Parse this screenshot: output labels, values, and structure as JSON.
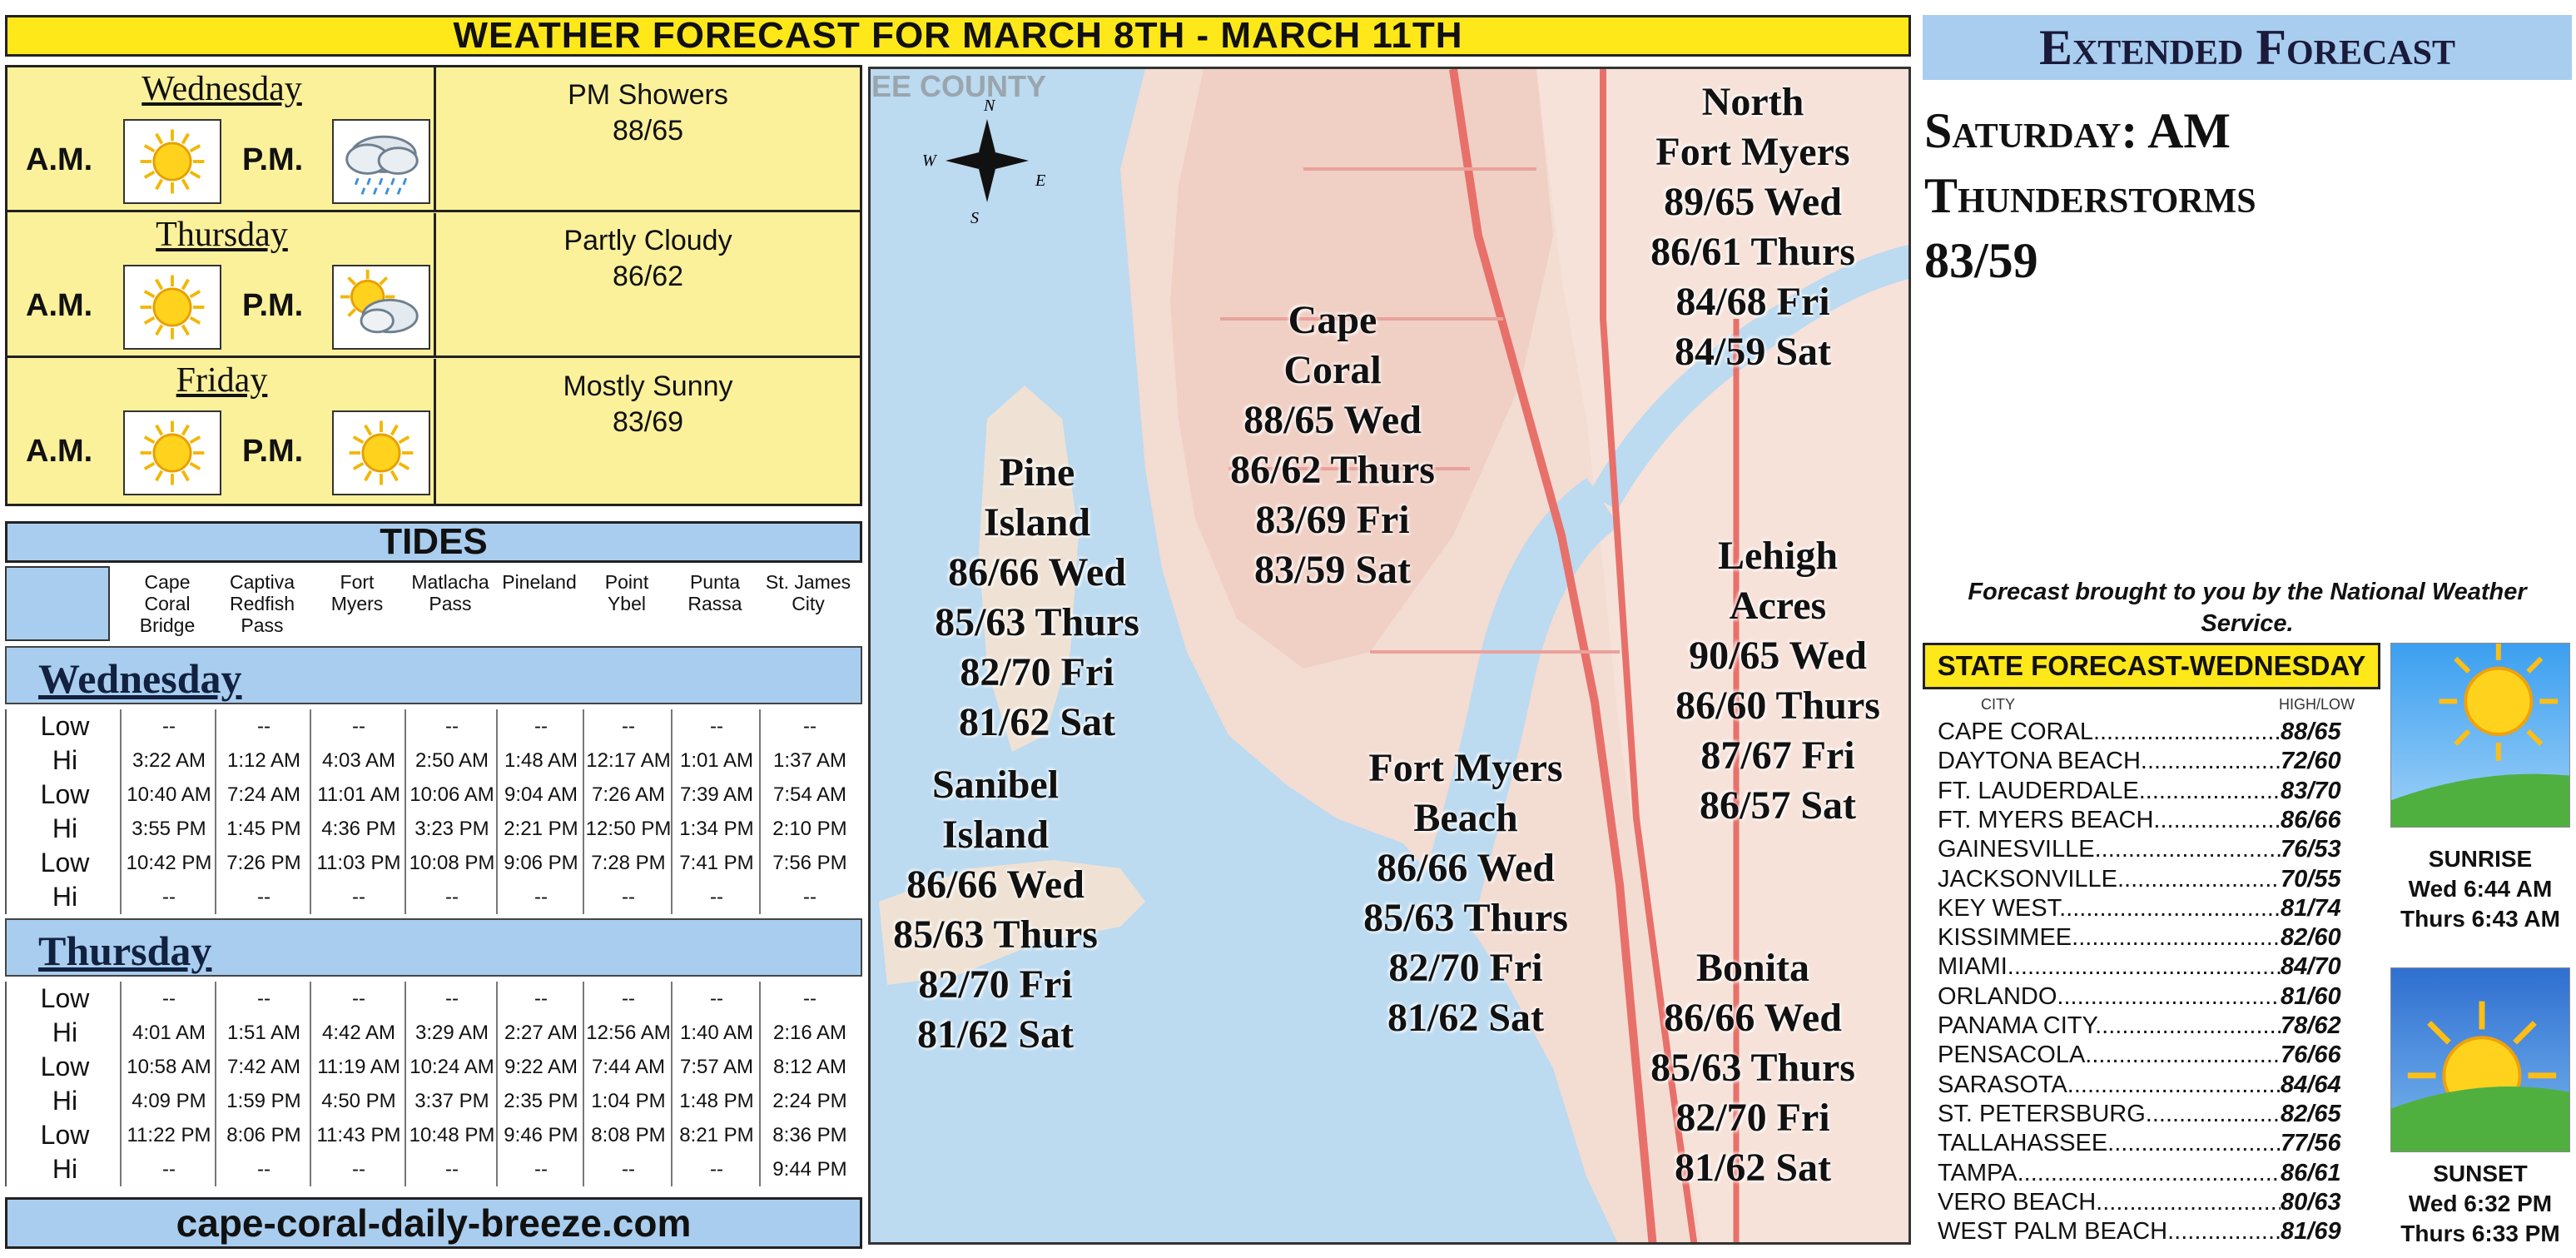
{
  "header": {
    "title": "WEATHER FORECAST FOR MARCH 8TH - MARCH 11TH"
  },
  "daily": [
    {
      "day": "Wednesday",
      "am": "A.M.",
      "pm": "P.M.",
      "am_icon": "sun-icon",
      "pm_icon": "rain-cloud-icon",
      "condition": "PM Showers",
      "temps": "88/65"
    },
    {
      "day": "Thursday",
      "am": "A.M.",
      "pm": "P.M.",
      "am_icon": "sun-icon",
      "pm_icon": "partly-cloudy-icon",
      "condition": "Partly Cloudy",
      "temps": "86/62"
    },
    {
      "day": "Friday",
      "am": "A.M.",
      "pm": "P.M.",
      "am_icon": "sun-icon",
      "pm_icon": "sun-icon",
      "condition": "Mostly Sunny",
      "temps": "83/69"
    }
  ],
  "tides": {
    "title": "TIDES",
    "locations": [
      "Cape\nCoral\nBridge",
      "Captiva\nRedfish\nPass",
      "Fort\nMyers",
      "Matlacha\nPass",
      "Pineland",
      "Point\nYbel",
      "Punta\nRassa",
      "St. James\nCity"
    ],
    "days": [
      {
        "name": "Wednesday",
        "rows": [
          {
            "label": "Low",
            "values": [
              "--",
              "--",
              "--",
              "--",
              "--",
              "--",
              "--",
              "--"
            ]
          },
          {
            "label": "Hi",
            "values": [
              "3:22 AM",
              "1:12 AM",
              "4:03 AM",
              "2:50 AM",
              "1:48 AM",
              "12:17 AM",
              "1:01 AM",
              "1:37 AM"
            ]
          },
          {
            "label": "Low",
            "values": [
              "10:40 AM",
              "7:24 AM",
              "11:01 AM",
              "10:06 AM",
              "9:04 AM",
              "7:26 AM",
              "7:39 AM",
              "7:54 AM"
            ]
          },
          {
            "label": "Hi",
            "values": [
              "3:55 PM",
              "1:45 PM",
              "4:36 PM",
              "3:23 PM",
              "2:21 PM",
              "12:50 PM",
              "1:34 PM",
              "2:10 PM"
            ]
          },
          {
            "label": "Low",
            "values": [
              "10:42 PM",
              "7:26 PM",
              "11:03 PM",
              "10:08 PM",
              "9:06 PM",
              "7:28 PM",
              "7:41 PM",
              "7:56 PM"
            ]
          },
          {
            "label": "Hi",
            "values": [
              "--",
              "--",
              "--",
              "--",
              "--",
              "--",
              "--",
              "--"
            ]
          }
        ]
      },
      {
        "name": "Thursday",
        "rows": [
          {
            "label": "Low",
            "values": [
              "--",
              "--",
              "--",
              "--",
              "--",
              "--",
              "--",
              "--"
            ]
          },
          {
            "label": "Hi",
            "values": [
              "4:01 AM",
              "1:51 AM",
              "4:42 AM",
              "3:29 AM",
              "2:27 AM",
              "12:56 AM",
              "1:40 AM",
              "2:16 AM"
            ]
          },
          {
            "label": "Low",
            "values": [
              "10:58 AM",
              "7:42 AM",
              "11:19 AM",
              "10:24 AM",
              "9:22 AM",
              "7:44 AM",
              "7:57 AM",
              "8:12 AM"
            ]
          },
          {
            "label": "Hi",
            "values": [
              "4:09 PM",
              "1:59 PM",
              "4:50 PM",
              "3:37 PM",
              "2:35 PM",
              "1:04 PM",
              "1:48 PM",
              "2:24 PM"
            ]
          },
          {
            "label": "Low",
            "values": [
              "11:22 PM",
              "8:06 PM",
              "11:43 PM",
              "10:48 PM",
              "9:46 PM",
              "8:08 PM",
              "8:21 PM",
              "8:36 PM"
            ]
          },
          {
            "label": "Hi",
            "values": [
              "--",
              "--",
              "--",
              "--",
              "--",
              "--",
              "--",
              "9:44 PM"
            ]
          }
        ]
      }
    ]
  },
  "footer": {
    "site": "cape-coral-daily-breeze.com"
  },
  "map": {
    "county_text": "EE COUNTY",
    "regions": [
      {
        "name": "North\nFort Myers",
        "forecast": [
          "89/65 Wed",
          "86/61 Thurs",
          "84/68 Fri",
          "84/59 Sat"
        ]
      },
      {
        "name": "Cape\nCoral",
        "forecast": [
          "88/65 Wed",
          "86/62 Thurs",
          "83/69 Fri",
          "83/59 Sat"
        ]
      },
      {
        "name": "Pine\nIsland",
        "forecast": [
          "86/66 Wed",
          "85/63 Thurs",
          "82/70 Fri",
          "81/62 Sat"
        ]
      },
      {
        "name": "Lehigh\nAcres",
        "forecast": [
          "90/65 Wed",
          "86/60 Thurs",
          "87/67 Fri",
          "86/57 Sat"
        ]
      },
      {
        "name": "Sanibel\nIsland",
        "forecast": [
          "86/66 Wed",
          "85/63 Thurs",
          "82/70 Fri",
          "81/62 Sat"
        ]
      },
      {
        "name": "Fort Myers\nBeach",
        "forecast": [
          "86/66 Wed",
          "85/63 Thurs",
          "82/70 Fri",
          "81/62 Sat"
        ]
      },
      {
        "name": "Bonita",
        "forecast": [
          "86/66 Wed",
          "85/63 Thurs",
          "82/70 Fri",
          "81/62 Sat"
        ]
      }
    ]
  },
  "extended": {
    "title": "Extended Forecast",
    "lines": [
      "Saturday: AM",
      "Thunderstorms",
      "83/59"
    ]
  },
  "credit": "Forecast brought to you by the National Weather Service.",
  "state": {
    "title": "STATE FORECAST-WEDNESDAY",
    "col_city": "CITY",
    "col_hl": "HIGH/LOW",
    "rows": [
      {
        "city": "CAPE CORAL",
        "hl": "88/65"
      },
      {
        "city": "DAYTONA BEACH",
        "hl": "72/60"
      },
      {
        "city": "FT. LAUDERDALE",
        "hl": "83/70"
      },
      {
        "city": "FT. MYERS BEACH",
        "hl": "86/66"
      },
      {
        "city": "GAINESVILLE",
        "hl": "76/53"
      },
      {
        "city": "JACKSONVILLE",
        "hl": "70/55"
      },
      {
        "city": "KEY WEST",
        "hl": "81/74"
      },
      {
        "city": "KISSIMMEE",
        "hl": "82/60"
      },
      {
        "city": "MIAMI",
        "hl": "84/70"
      },
      {
        "city": "ORLANDO",
        "hl": "81/60"
      },
      {
        "city": "PANAMA CITY",
        "hl": "78/62"
      },
      {
        "city": "PENSACOLA",
        "hl": "76/66"
      },
      {
        "city": "SARASOTA",
        "hl": "84/64"
      },
      {
        "city": "ST. PETERSBURG",
        "hl": "82/65"
      },
      {
        "city": "TALLAHASSEE",
        "hl": "77/56"
      },
      {
        "city": "TAMPA",
        "hl": "86/61"
      },
      {
        "city": "VERO BEACH",
        "hl": "80/63"
      },
      {
        "city": "WEST PALM BEACH",
        "hl": "81/69"
      }
    ]
  },
  "sun": {
    "sunrise_label": "SUNRISE",
    "sunrise_wed": "Wed 6:44 AM",
    "sunrise_thu": "Thurs 6:43 AM",
    "sunset_label": "SUNSET",
    "sunset_wed": "Wed 6:32 PM",
    "sunset_thu": "Thurs 6:33 PM"
  },
  "colors": {
    "yellow": "#ffe81a",
    "pale_yellow": "#fbf19b",
    "blue": "#a9cdee"
  }
}
